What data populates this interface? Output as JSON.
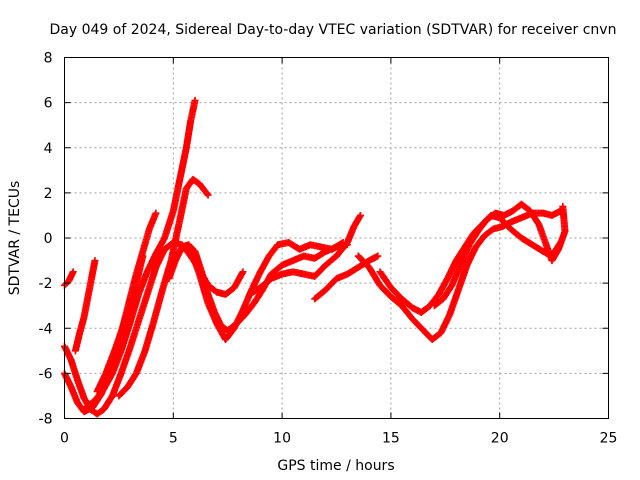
{
  "chart_data": {
    "type": "scatter",
    "title": "Day 049 of 2024, Sidereal Day-to-day VTEC variation (SDTVAR) for receiver cnvn",
    "xlabel": "GPS time / hours",
    "ylabel": "SDTVAR / TECUs",
    "xlim": [
      0,
      25
    ],
    "ylim": [
      -8,
      8
    ],
    "x_ticks": [
      "0",
      "5",
      "10",
      "15",
      "20",
      "25"
    ],
    "y_ticks": [
      "-8",
      "-6",
      "-4",
      "-2",
      "0",
      "2",
      "4",
      "6",
      "8"
    ],
    "grid": true,
    "marker": "+",
    "color": "#ff0000",
    "series": [
      {
        "points": [
          [
            0,
            -2.1
          ],
          [
            0.2,
            -1.9
          ],
          [
            0.4,
            -1.5
          ]
        ]
      },
      {
        "points": [
          [
            0,
            -4.8
          ],
          [
            0.3,
            -5.4
          ],
          [
            0.6,
            -6.3
          ],
          [
            0.9,
            -7.1
          ],
          [
            1.2,
            -7.6
          ],
          [
            1.5,
            -7.8
          ],
          [
            1.8,
            -7.6
          ],
          [
            2.2,
            -7.0
          ],
          [
            2.6,
            -6.0
          ],
          [
            3.0,
            -4.9
          ],
          [
            3.4,
            -3.7
          ],
          [
            3.8,
            -2.5
          ],
          [
            4.2,
            -1.3
          ],
          [
            4.6,
            -0.5
          ],
          [
            5.0,
            -0.2
          ],
          [
            5.4,
            -0.3
          ],
          [
            5.8,
            -0.8
          ],
          [
            6.2,
            -1.4
          ],
          [
            6.6,
            -2.1
          ],
          [
            7.0,
            -2.4
          ],
          [
            7.4,
            -2.5
          ],
          [
            7.8,
            -2.2
          ],
          [
            8.2,
            -1.5
          ]
        ]
      },
      {
        "points": [
          [
            0,
            -6.0
          ],
          [
            0.3,
            -6.6
          ],
          [
            0.6,
            -7.3
          ],
          [
            0.9,
            -7.7
          ],
          [
            1.3,
            -7.5
          ],
          [
            1.7,
            -6.9
          ],
          [
            2.1,
            -5.9
          ],
          [
            2.5,
            -4.6
          ],
          [
            2.9,
            -3.1
          ],
          [
            3.3,
            -1.6
          ],
          [
            3.6,
            -0.6
          ],
          [
            3.9,
            0.4
          ],
          [
            4.2,
            1.1
          ]
        ]
      },
      {
        "points": [
          [
            0.5,
            -5.0
          ],
          [
            0.7,
            -4.2
          ],
          [
            0.9,
            -3.5
          ],
          [
            1.1,
            -2.5
          ],
          [
            1.3,
            -1.5
          ],
          [
            1.4,
            -1.0
          ]
        ]
      },
      {
        "points": [
          [
            1.0,
            -7.5
          ],
          [
            1.4,
            -7.2
          ],
          [
            1.8,
            -6.7
          ],
          [
            2.2,
            -6.0
          ],
          [
            2.6,
            -5.0
          ],
          [
            3.0,
            -3.8
          ],
          [
            3.4,
            -2.5
          ],
          [
            3.8,
            -1.5
          ],
          [
            4.2,
            -0.7
          ],
          [
            4.6,
            0.0
          ],
          [
            5.0,
            1.2
          ],
          [
            5.3,
            2.6
          ],
          [
            5.6,
            4.0
          ],
          [
            5.8,
            5.2
          ],
          [
            6.0,
            6.1
          ]
        ]
      },
      {
        "points": [
          [
            1.5,
            -6.8
          ],
          [
            1.9,
            -6.0
          ],
          [
            2.3,
            -5.0
          ],
          [
            2.7,
            -3.9
          ],
          [
            3.1,
            -2.8
          ],
          [
            3.4,
            -1.6
          ],
          [
            3.6,
            -0.8
          ]
        ]
      },
      {
        "points": [
          [
            2.5,
            -7.0
          ],
          [
            2.9,
            -6.6
          ],
          [
            3.3,
            -6.0
          ],
          [
            3.7,
            -5.0
          ],
          [
            4.1,
            -3.7
          ],
          [
            4.5,
            -2.3
          ],
          [
            4.9,
            -1.0
          ],
          [
            5.3,
            0.8
          ],
          [
            5.6,
            2.2
          ],
          [
            5.9,
            2.6
          ],
          [
            6.2,
            2.4
          ],
          [
            6.6,
            1.9
          ]
        ]
      },
      {
        "points": [
          [
            4.8,
            -1.8
          ],
          [
            5.1,
            -1.0
          ],
          [
            5.4,
            -0.4
          ],
          [
            5.7,
            -0.3
          ],
          [
            6.0,
            -0.6
          ],
          [
            6.3,
            -1.5
          ],
          [
            6.6,
            -2.5
          ],
          [
            6.9,
            -3.3
          ],
          [
            7.2,
            -3.9
          ],
          [
            7.5,
            -4.1
          ],
          [
            7.9,
            -3.8
          ],
          [
            8.3,
            -3.4
          ],
          [
            8.7,
            -2.9
          ],
          [
            9.1,
            -2.3
          ],
          [
            9.5,
            -1.6
          ],
          [
            10.0,
            -1.2
          ],
          [
            10.5,
            -1.0
          ],
          [
            11.0,
            -0.8
          ],
          [
            11.5,
            -0.9
          ],
          [
            12.0,
            -0.6
          ],
          [
            12.5,
            -0.4
          ],
          [
            13.0,
            -0.3
          ]
        ]
      },
      {
        "points": [
          [
            5.6,
            -0.5
          ],
          [
            5.9,
            -0.8
          ],
          [
            6.2,
            -1.6
          ],
          [
            6.6,
            -2.9
          ],
          [
            7.0,
            -3.8
          ],
          [
            7.4,
            -4.5
          ],
          [
            7.8,
            -4.0
          ],
          [
            8.2,
            -3.2
          ],
          [
            8.6,
            -2.3
          ],
          [
            9.0,
            -1.5
          ],
          [
            9.4,
            -0.8
          ],
          [
            9.8,
            -0.3
          ],
          [
            10.3,
            -0.2
          ],
          [
            10.8,
            -0.5
          ],
          [
            11.3,
            -0.3
          ],
          [
            11.8,
            -0.4
          ],
          [
            12.3,
            -0.5
          ],
          [
            12.8,
            -0.2
          ]
        ]
      },
      {
        "points": [
          [
            8.5,
            -2.5
          ],
          [
            9.0,
            -2.2
          ],
          [
            9.5,
            -1.8
          ],
          [
            10.0,
            -1.6
          ],
          [
            10.5,
            -1.5
          ],
          [
            11.0,
            -1.6
          ],
          [
            11.5,
            -1.7
          ],
          [
            12.0,
            -1.2
          ],
          [
            12.5,
            -0.8
          ],
          [
            13.0,
            -0.2
          ],
          [
            13.3,
            0.5
          ],
          [
            13.6,
            1.0
          ]
        ]
      },
      {
        "points": [
          [
            11.5,
            -2.7
          ],
          [
            12.0,
            -2.3
          ],
          [
            12.5,
            -1.8
          ],
          [
            13.0,
            -1.6
          ],
          [
            13.5,
            -1.3
          ],
          [
            14.0,
            -1.0
          ],
          [
            14.4,
            -0.8
          ]
        ]
      },
      {
        "points": [
          [
            13.5,
            -0.8
          ],
          [
            14.0,
            -1.3
          ],
          [
            14.5,
            -2.1
          ],
          [
            15.0,
            -2.6
          ],
          [
            15.5,
            -3.0
          ],
          [
            16.0,
            -3.6
          ],
          [
            16.5,
            -4.1
          ],
          [
            16.9,
            -4.5
          ],
          [
            17.3,
            -4.2
          ],
          [
            17.7,
            -3.4
          ],
          [
            18.1,
            -2.3
          ],
          [
            18.5,
            -1.2
          ],
          [
            18.9,
            -0.4
          ],
          [
            19.3,
            0.1
          ],
          [
            19.7,
            0.4
          ],
          [
            20.1,
            0.5
          ],
          [
            20.5,
            0.7
          ],
          [
            21.0,
            0.9
          ],
          [
            21.5,
            1.1
          ],
          [
            22.0,
            1.1
          ],
          [
            22.4,
            1.0
          ],
          [
            22.8,
            1.2
          ]
        ]
      },
      {
        "points": [
          [
            14.5,
            -1.5
          ],
          [
            15.0,
            -2.2
          ],
          [
            15.5,
            -2.7
          ],
          [
            16.0,
            -3.1
          ],
          [
            16.4,
            -3.3
          ],
          [
            16.8,
            -3.0
          ],
          [
            17.2,
            -2.5
          ],
          [
            17.6,
            -1.8
          ],
          [
            18.0,
            -1.0
          ],
          [
            18.4,
            -0.4
          ],
          [
            18.8,
            0.2
          ],
          [
            19.2,
            0.6
          ],
          [
            19.6,
            1.0
          ],
          [
            20.0,
            0.9
          ],
          [
            20.5,
            0.4
          ],
          [
            21.0,
            0.0
          ],
          [
            21.5,
            -0.3
          ],
          [
            22.0,
            -0.6
          ],
          [
            22.4,
            -0.8
          ],
          [
            22.8,
            -0.2
          ]
        ]
      },
      {
        "points": [
          [
            17.0,
            -3.0
          ],
          [
            17.4,
            -2.7
          ],
          [
            17.8,
            -2.1
          ],
          [
            18.2,
            -1.2
          ],
          [
            18.6,
            -0.3
          ],
          [
            19.0,
            0.3
          ],
          [
            19.4,
            0.8
          ],
          [
            19.8,
            1.1
          ],
          [
            20.2,
            1.0
          ],
          [
            20.6,
            1.2
          ],
          [
            21.0,
            1.5
          ],
          [
            21.4,
            1.2
          ],
          [
            21.8,
            0.6
          ],
          [
            22.1,
            -0.2
          ],
          [
            22.4,
            -1.0
          ],
          [
            22.7,
            -0.5
          ],
          [
            23.0,
            0.3
          ],
          [
            22.9,
            1.4
          ]
        ]
      }
    ]
  }
}
